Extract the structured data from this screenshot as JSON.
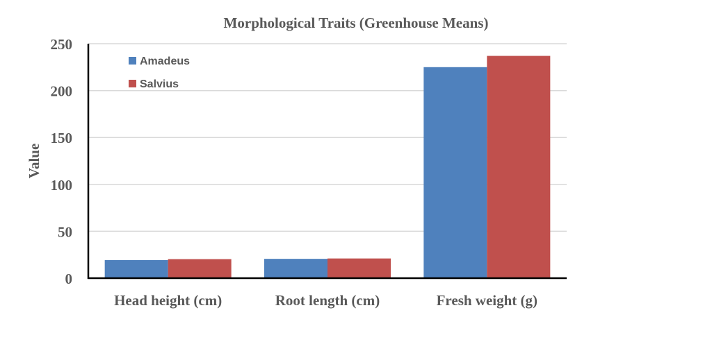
{
  "chart_data": {
    "type": "bar",
    "title": "Morphological Traits (Greenhouse Means)",
    "xlabel": "",
    "ylabel": "Value",
    "categories": [
      "Head height (cm)",
      "Root length (cm)",
      "Fresh weight (g)"
    ],
    "series": [
      {
        "name": "Amadeus",
        "color": "#4F81BD",
        "values": [
          19.3,
          20.6,
          225
        ]
      },
      {
        "name": "Salvius",
        "color": "#C0504D",
        "values": [
          20.3,
          21.0,
          237
        ]
      }
    ],
    "ylim": [
      0,
      250
    ],
    "yticks": [
      0,
      50,
      100,
      150,
      200,
      250
    ],
    "grid": true,
    "legend": "top-left"
  }
}
